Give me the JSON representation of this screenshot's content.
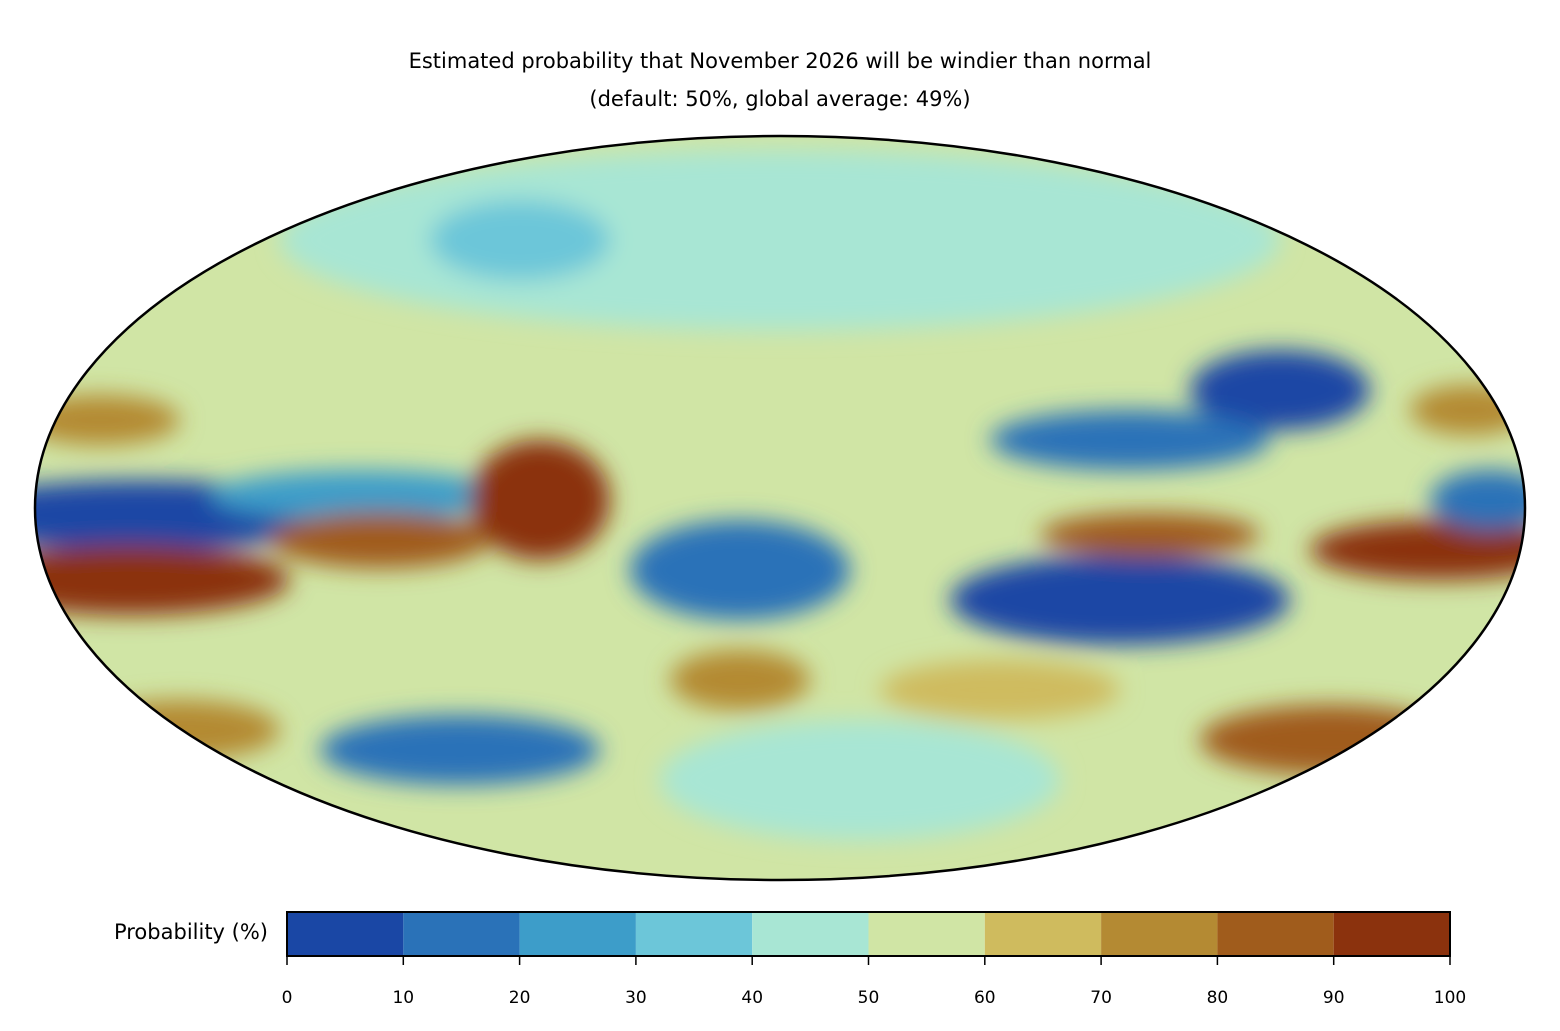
{
  "title": [
    "Estimated probability that November 2026 will be windier than normal",
    "(default: 50%, global average: 49%)"
  ],
  "colorbar": {
    "label": "Probability (%)",
    "ticks": [
      0,
      10,
      20,
      30,
      40,
      50,
      60,
      70,
      80,
      90,
      100
    ],
    "colors": [
      "#1a47a5",
      "#2a72b8",
      "#3d9dc9",
      "#6cc6d9",
      "#a8e6d4",
      "#d0e5a5",
      "#cfbb5e",
      "#b48a33",
      "#a05c1c",
      "#8b320d"
    ]
  }
}
